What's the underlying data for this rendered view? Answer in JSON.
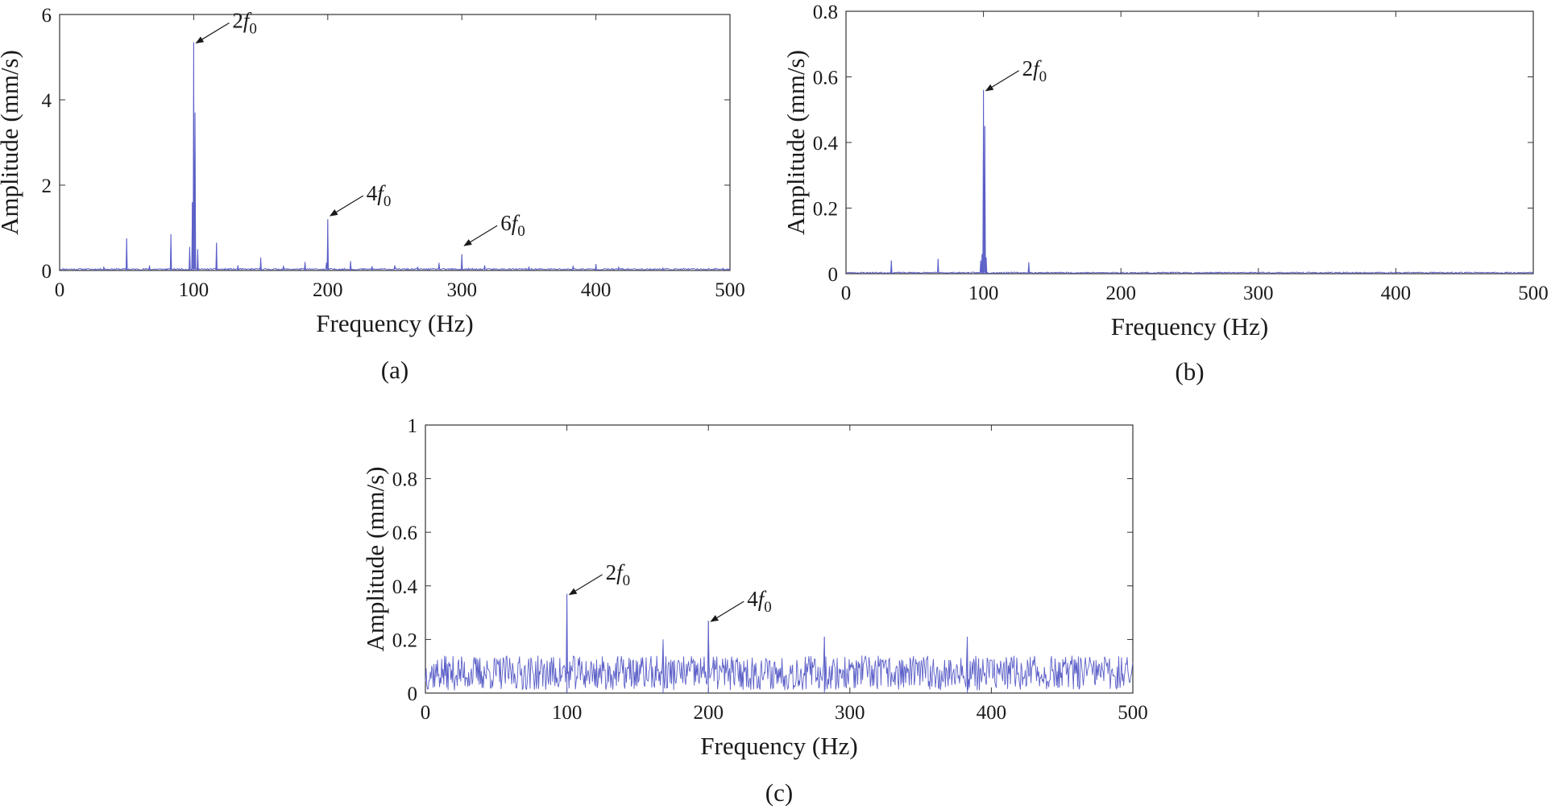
{
  "figure": {
    "colors": {
      "line": "#5b5fc7",
      "axis": "#333333",
      "text": "#1a1a1a",
      "background": "#ffffff"
    }
  },
  "chart_data": [
    {
      "id": "a",
      "type": "line",
      "panel_label": "(a)",
      "xlabel": "Frequency (Hz)",
      "ylabel": "Amplitude (mm/s)",
      "xlim": [
        0,
        500
      ],
      "ylim": [
        0,
        6
      ],
      "xticks": [
        0,
        100,
        200,
        300,
        400,
        500
      ],
      "yticks": [
        0,
        2,
        4,
        6
      ],
      "noise": {
        "seed": 11,
        "base": 0.02,
        "spread": 0.04
      },
      "peaks": [
        {
          "x": 33,
          "y": 0.08
        },
        {
          "x": 50,
          "y": 0.75
        },
        {
          "x": 67,
          "y": 0.12
        },
        {
          "x": 83,
          "y": 0.85
        },
        {
          "x": 97,
          "y": 0.55
        },
        {
          "x": 99,
          "y": 1.6
        },
        {
          "x": 100,
          "y": 5.35
        },
        {
          "x": 101,
          "y": 3.7
        },
        {
          "x": 103,
          "y": 0.5
        },
        {
          "x": 117,
          "y": 0.65
        },
        {
          "x": 133,
          "y": 0.12
        },
        {
          "x": 150,
          "y": 0.3
        },
        {
          "x": 167,
          "y": 0.1
        },
        {
          "x": 183,
          "y": 0.2
        },
        {
          "x": 199,
          "y": 0.18
        },
        {
          "x": 200,
          "y": 1.2
        },
        {
          "x": 217,
          "y": 0.22
        },
        {
          "x": 233,
          "y": 0.1
        },
        {
          "x": 250,
          "y": 0.12
        },
        {
          "x": 267,
          "y": 0.08
        },
        {
          "x": 283,
          "y": 0.18
        },
        {
          "x": 300,
          "y": 0.38
        },
        {
          "x": 317,
          "y": 0.12
        },
        {
          "x": 350,
          "y": 0.08
        },
        {
          "x": 383,
          "y": 0.1
        },
        {
          "x": 400,
          "y": 0.15
        },
        {
          "x": 417,
          "y": 0.08
        },
        {
          "x": 450,
          "y": 0.06
        }
      ],
      "annotations": [
        {
          "pre": "2",
          "var": "f",
          "sub": "0",
          "x": 100,
          "y": 5.35
        },
        {
          "pre": "4",
          "var": "f",
          "sub": "0",
          "x": 200,
          "y": 1.3
        },
        {
          "pre": "6",
          "var": "f",
          "sub": "0",
          "x": 300,
          "y": 0.6
        }
      ]
    },
    {
      "id": "b",
      "type": "line",
      "panel_label": "(b)",
      "xlabel": "Frequency (Hz)",
      "ylabel": "Amplitude (mm/s)",
      "xlim": [
        0,
        500
      ],
      "ylim": [
        0,
        0.8
      ],
      "xticks": [
        0,
        100,
        200,
        300,
        400,
        500
      ],
      "yticks": [
        0,
        0.2,
        0.4,
        0.6,
        0.8
      ],
      "noise": {
        "seed": 23,
        "base": 0.002,
        "spread": 0.004
      },
      "peaks": [
        {
          "x": 33,
          "y": 0.04
        },
        {
          "x": 67,
          "y": 0.045
        },
        {
          "x": 98,
          "y": 0.04
        },
        {
          "x": 99,
          "y": 0.06
        },
        {
          "x": 100,
          "y": 0.56
        },
        {
          "x": 101,
          "y": 0.45
        },
        {
          "x": 102,
          "y": 0.05
        },
        {
          "x": 133,
          "y": 0.035
        }
      ],
      "annotations": [
        {
          "pre": "2",
          "var": "f",
          "sub": "0",
          "x": 100,
          "y": 0.56
        }
      ]
    },
    {
      "id": "c",
      "type": "line",
      "panel_label": "(c)",
      "xlabel": "Frequency (Hz)",
      "ylabel": "Amplitude (mm/s)",
      "xlim": [
        0,
        500
      ],
      "ylim": [
        0,
        1
      ],
      "xticks": [
        0,
        100,
        200,
        300,
        400,
        500
      ],
      "yticks": [
        0,
        0.2,
        0.4,
        0.6,
        0.8,
        1
      ],
      "noise": {
        "seed": 37,
        "base": 0.02,
        "spread": 0.13
      },
      "peaks": [
        {
          "x": 100,
          "y": 0.37
        },
        {
          "x": 200,
          "y": 0.27
        },
        {
          "x": 282,
          "y": 0.21
        },
        {
          "x": 383,
          "y": 0.21
        },
        {
          "x": 168,
          "y": 0.2
        }
      ],
      "annotations": [
        {
          "pre": "2",
          "var": "f",
          "sub": "0",
          "x": 100,
          "y": 0.37
        },
        {
          "pre": "4",
          "var": "f",
          "sub": "0",
          "x": 200,
          "y": 0.27
        }
      ]
    }
  ]
}
